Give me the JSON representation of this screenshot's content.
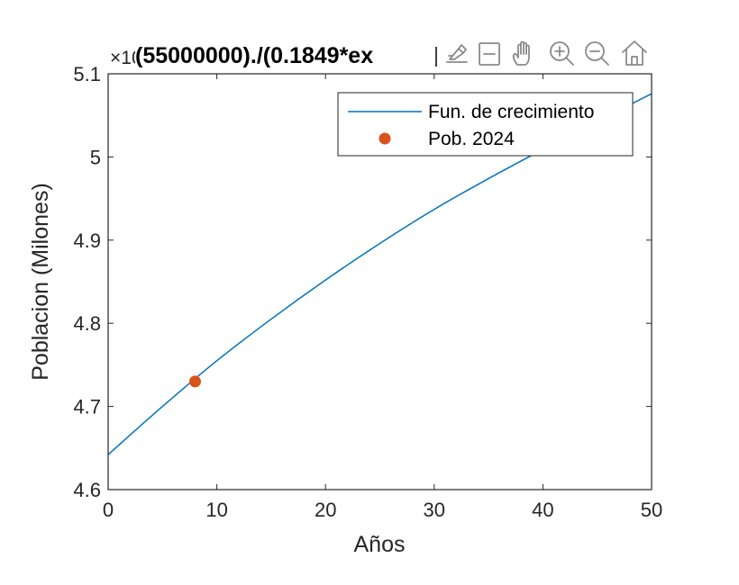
{
  "chart_data": {
    "type": "line",
    "title": "(55000000)./(0.1849*ex",
    "y_exponent_label": "×10",
    "xlabel": "Años",
    "ylabel": "Poblacion (Milones)",
    "xlim": [
      0,
      50
    ],
    "ylim": [
      4.6,
      5.1
    ],
    "xticks": [
      0,
      10,
      20,
      30,
      40,
      50
    ],
    "xtick_labels": [
      "0",
      "10",
      "20",
      "30",
      "40",
      "50"
    ],
    "yticks": [
      4.6,
      4.7,
      4.8,
      4.9,
      5.0,
      5.1
    ],
    "ytick_labels": [
      "4.6",
      "4.7",
      "4.8",
      "4.9",
      "5",
      "5.1"
    ],
    "grid": false,
    "legend_position": "top-right",
    "series": [
      {
        "name": "Fun. de crecimiento",
        "kind": "line",
        "color": "#0072BD",
        "x": [
          0,
          5,
          10,
          15,
          20,
          25,
          30,
          35,
          40,
          45,
          50
        ],
        "y": [
          4.642,
          4.7,
          4.755,
          4.805,
          4.852,
          4.896,
          4.937,
          4.974,
          5.009,
          5.043,
          5.076
        ]
      },
      {
        "name": "Pob. 2024",
        "kind": "marker",
        "color": "#D95319",
        "x": [
          8
        ],
        "y": [
          4.73
        ]
      }
    ]
  },
  "toolbar": {
    "icons": [
      "brush-icon",
      "datatip-icon",
      "pan-hand-icon",
      "zoom-in-icon",
      "zoom-out-icon",
      "home-icon"
    ]
  }
}
